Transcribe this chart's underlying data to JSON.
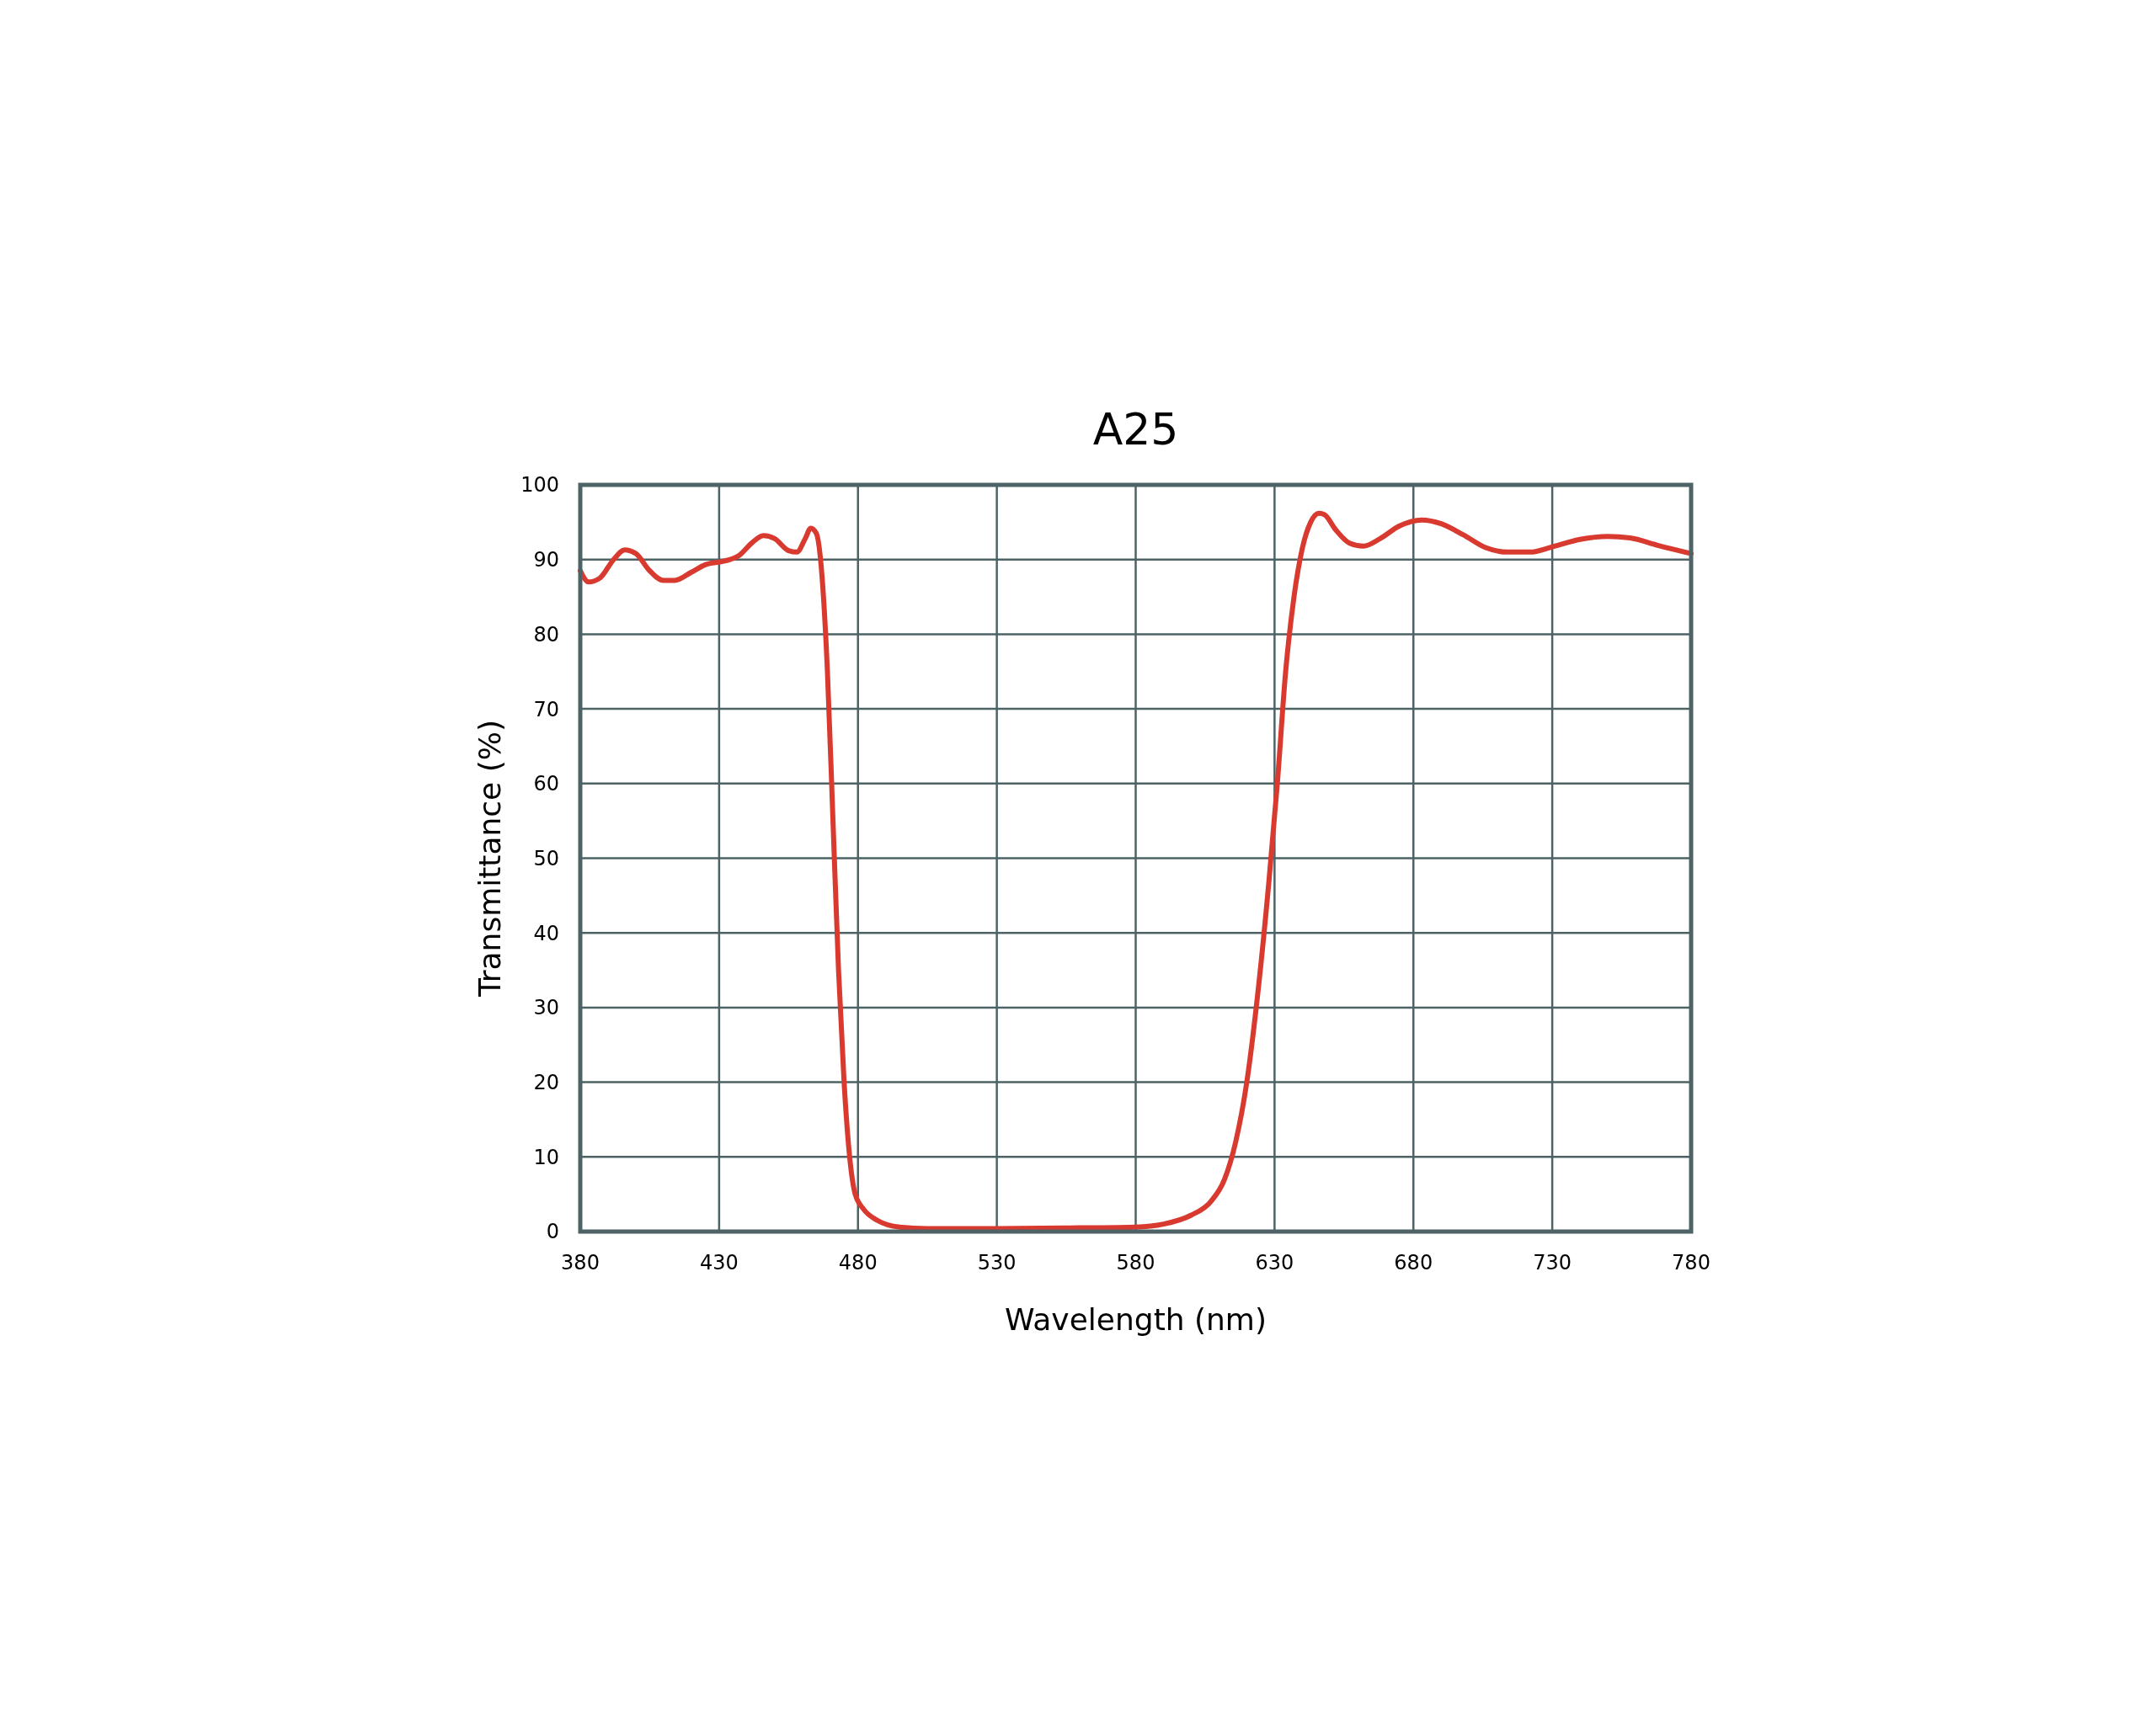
{
  "chart_data": {
    "type": "line",
    "title": "A25",
    "xlabel": "Wavelength (nm)",
    "ylabel": "Transmittance (%)",
    "xlim": [
      380,
      780
    ],
    "xticks": [
      380,
      430,
      480,
      530,
      580,
      630,
      680,
      730,
      780
    ],
    "ylim": [
      0,
      100
    ],
    "yticks": [
      0,
      10,
      20,
      30,
      40,
      50,
      60,
      70,
      80,
      90,
      100
    ],
    "grid": true,
    "x": [
      380,
      383,
      387,
      392,
      396,
      400,
      405,
      410,
      414,
      420,
      425,
      432,
      437,
      442,
      446,
      450,
      455,
      458,
      461,
      463,
      465,
      467,
      469,
      471,
      473,
      475,
      477,
      479,
      482,
      487,
      495,
      505,
      530,
      560,
      580,
      590,
      600,
      607,
      612,
      616,
      620,
      624,
      628,
      631,
      634,
      637,
      640,
      643,
      646,
      648,
      652,
      657,
      662,
      668,
      675,
      683,
      690,
      698,
      706,
      714,
      722,
      730,
      740,
      750,
      758,
      768,
      780
    ],
    "series": [
      {
        "color": "#d93a30",
        "values": [
          88.5,
          87,
          87.5,
          90,
          91.3,
          90.8,
          88.5,
          87.2,
          87.2,
          88.3,
          89.3,
          89.8,
          90.5,
          92.3,
          93.2,
          92.8,
          91.2,
          91,
          92.8,
          94.2,
          93.5,
          88,
          75,
          55,
          35,
          20,
          10,
          5,
          3,
          1.5,
          0.6,
          0.4,
          0.4,
          0.5,
          0.6,
          1,
          2.2,
          4,
          7,
          12,
          20,
          32,
          47,
          60,
          75,
          85,
          91.5,
          95,
          96.2,
          96,
          94,
          92.2,
          91.8,
          92.8,
          94.5,
          95.3,
          94.8,
          93.3,
          91.6,
          91,
          91,
          91.7,
          92.7,
          93.1,
          92.9,
          91.9,
          90.8
        ]
      }
    ]
  }
}
